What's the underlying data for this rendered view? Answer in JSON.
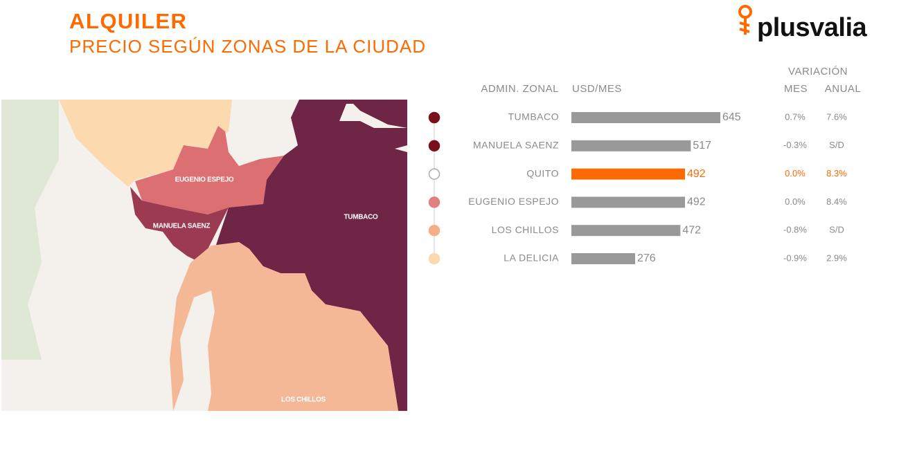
{
  "header": {
    "title": "ALQUILER",
    "subtitle": "PRECIO SEGÚN ZONAS DE LA CIUDAD",
    "logo": "plusvalia"
  },
  "map": {
    "labels": [
      "EUGENIO ESPEJO",
      "MANUELA SAENZ",
      "TUMBACO",
      "LOS CHILLOS"
    ]
  },
  "table": {
    "columns": {
      "zone": "ADMIN. ZONAL",
      "price": "USD/MES",
      "variation": "VARIACIÓN",
      "month": "MES",
      "year": "ANUAL"
    },
    "rows": [
      {
        "zone": "TUMBACO",
        "price": 645,
        "month": "0.7%",
        "year": "7.6%",
        "dot_color": "#7a0f1c",
        "bar_color": "#999999",
        "text_color": "#8a8a8a"
      },
      {
        "zone": "MANUELA SAENZ",
        "price": 517,
        "month": "-0.3%",
        "year": "S/D",
        "dot_color": "#7a0f1c",
        "bar_color": "#999999",
        "text_color": "#8a8a8a"
      },
      {
        "zone": "QUITO",
        "price": 492,
        "month": "0.0%",
        "year": "8.3%",
        "dot_color": "#ffffff",
        "bar_color": "#ff6a00",
        "text_color": "#ff6a00"
      },
      {
        "zone": "EUGENIO ESPEJO",
        "price": 492,
        "month": "0.0%",
        "year": "8.4%",
        "dot_color": "#e08080",
        "bar_color": "#999999",
        "text_color": "#8a8a8a"
      },
      {
        "zone": "LOS CHILLOS",
        "price": 472,
        "month": "-0.8%",
        "year": "S/D",
        "dot_color": "#f5ae88",
        "bar_color": "#999999",
        "text_color": "#8a8a8a"
      },
      {
        "zone": "LA DELICIA",
        "price": 276,
        "month": "-0.9%",
        "year": "2.9%",
        "dot_color": "#fbd9ae",
        "bar_color": "#999999",
        "text_color": "#8a8a8a"
      }
    ]
  }
}
